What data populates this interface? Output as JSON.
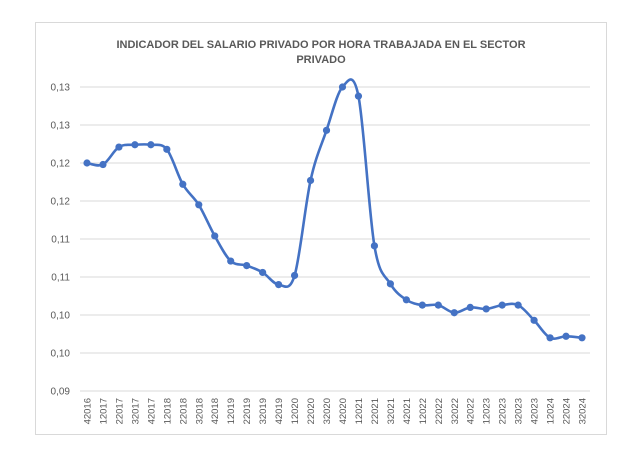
{
  "chart_data": {
    "type": "line",
    "title_line1": "INDICADOR DEL SALARIO PRIVADO POR HORA TRABAJADA EN EL SECTOR",
    "title_line2": "PRIVADO",
    "xlabel": "",
    "ylabel": "",
    "grid": "horizontal",
    "legend": "none",
    "line_color": "#4472c4",
    "ylim": [
      0.09,
      0.13
    ],
    "y_ticks": [
      0.09,
      0.095,
      0.1,
      0.105,
      0.11,
      0.115,
      0.12,
      0.125,
      0.13
    ],
    "y_tick_labels": [
      "0,09",
      "0,10",
      "0,10",
      "0,11",
      "0,11",
      "0,12",
      "0,12",
      "0,13",
      "0,13"
    ],
    "categories": [
      "42016",
      "12017",
      "22017",
      "32017",
      "42017",
      "12018",
      "22018",
      "32018",
      "42018",
      "12019",
      "22019",
      "32019",
      "42019",
      "12020",
      "22020",
      "32020",
      "42020",
      "12021",
      "22021",
      "32021",
      "42021",
      "12022",
      "22022",
      "32022",
      "42022",
      "12023",
      "22023",
      "32023",
      "42023",
      "12024",
      "22024",
      "32024"
    ],
    "values": [
      0.12,
      0.1198,
      0.1221,
      0.1224,
      0.1224,
      0.1218,
      0.1172,
      0.1145,
      0.1104,
      0.1071,
      0.1065,
      0.1056,
      0.104,
      0.1052,
      0.1177,
      0.1243,
      0.13,
      0.1288,
      0.1091,
      0.1041,
      0.102,
      0.1013,
      0.1013,
      0.1003,
      0.101,
      0.1008,
      0.1013,
      0.1013,
      0.0993,
      0.097,
      0.0972,
      0.097
    ]
  }
}
